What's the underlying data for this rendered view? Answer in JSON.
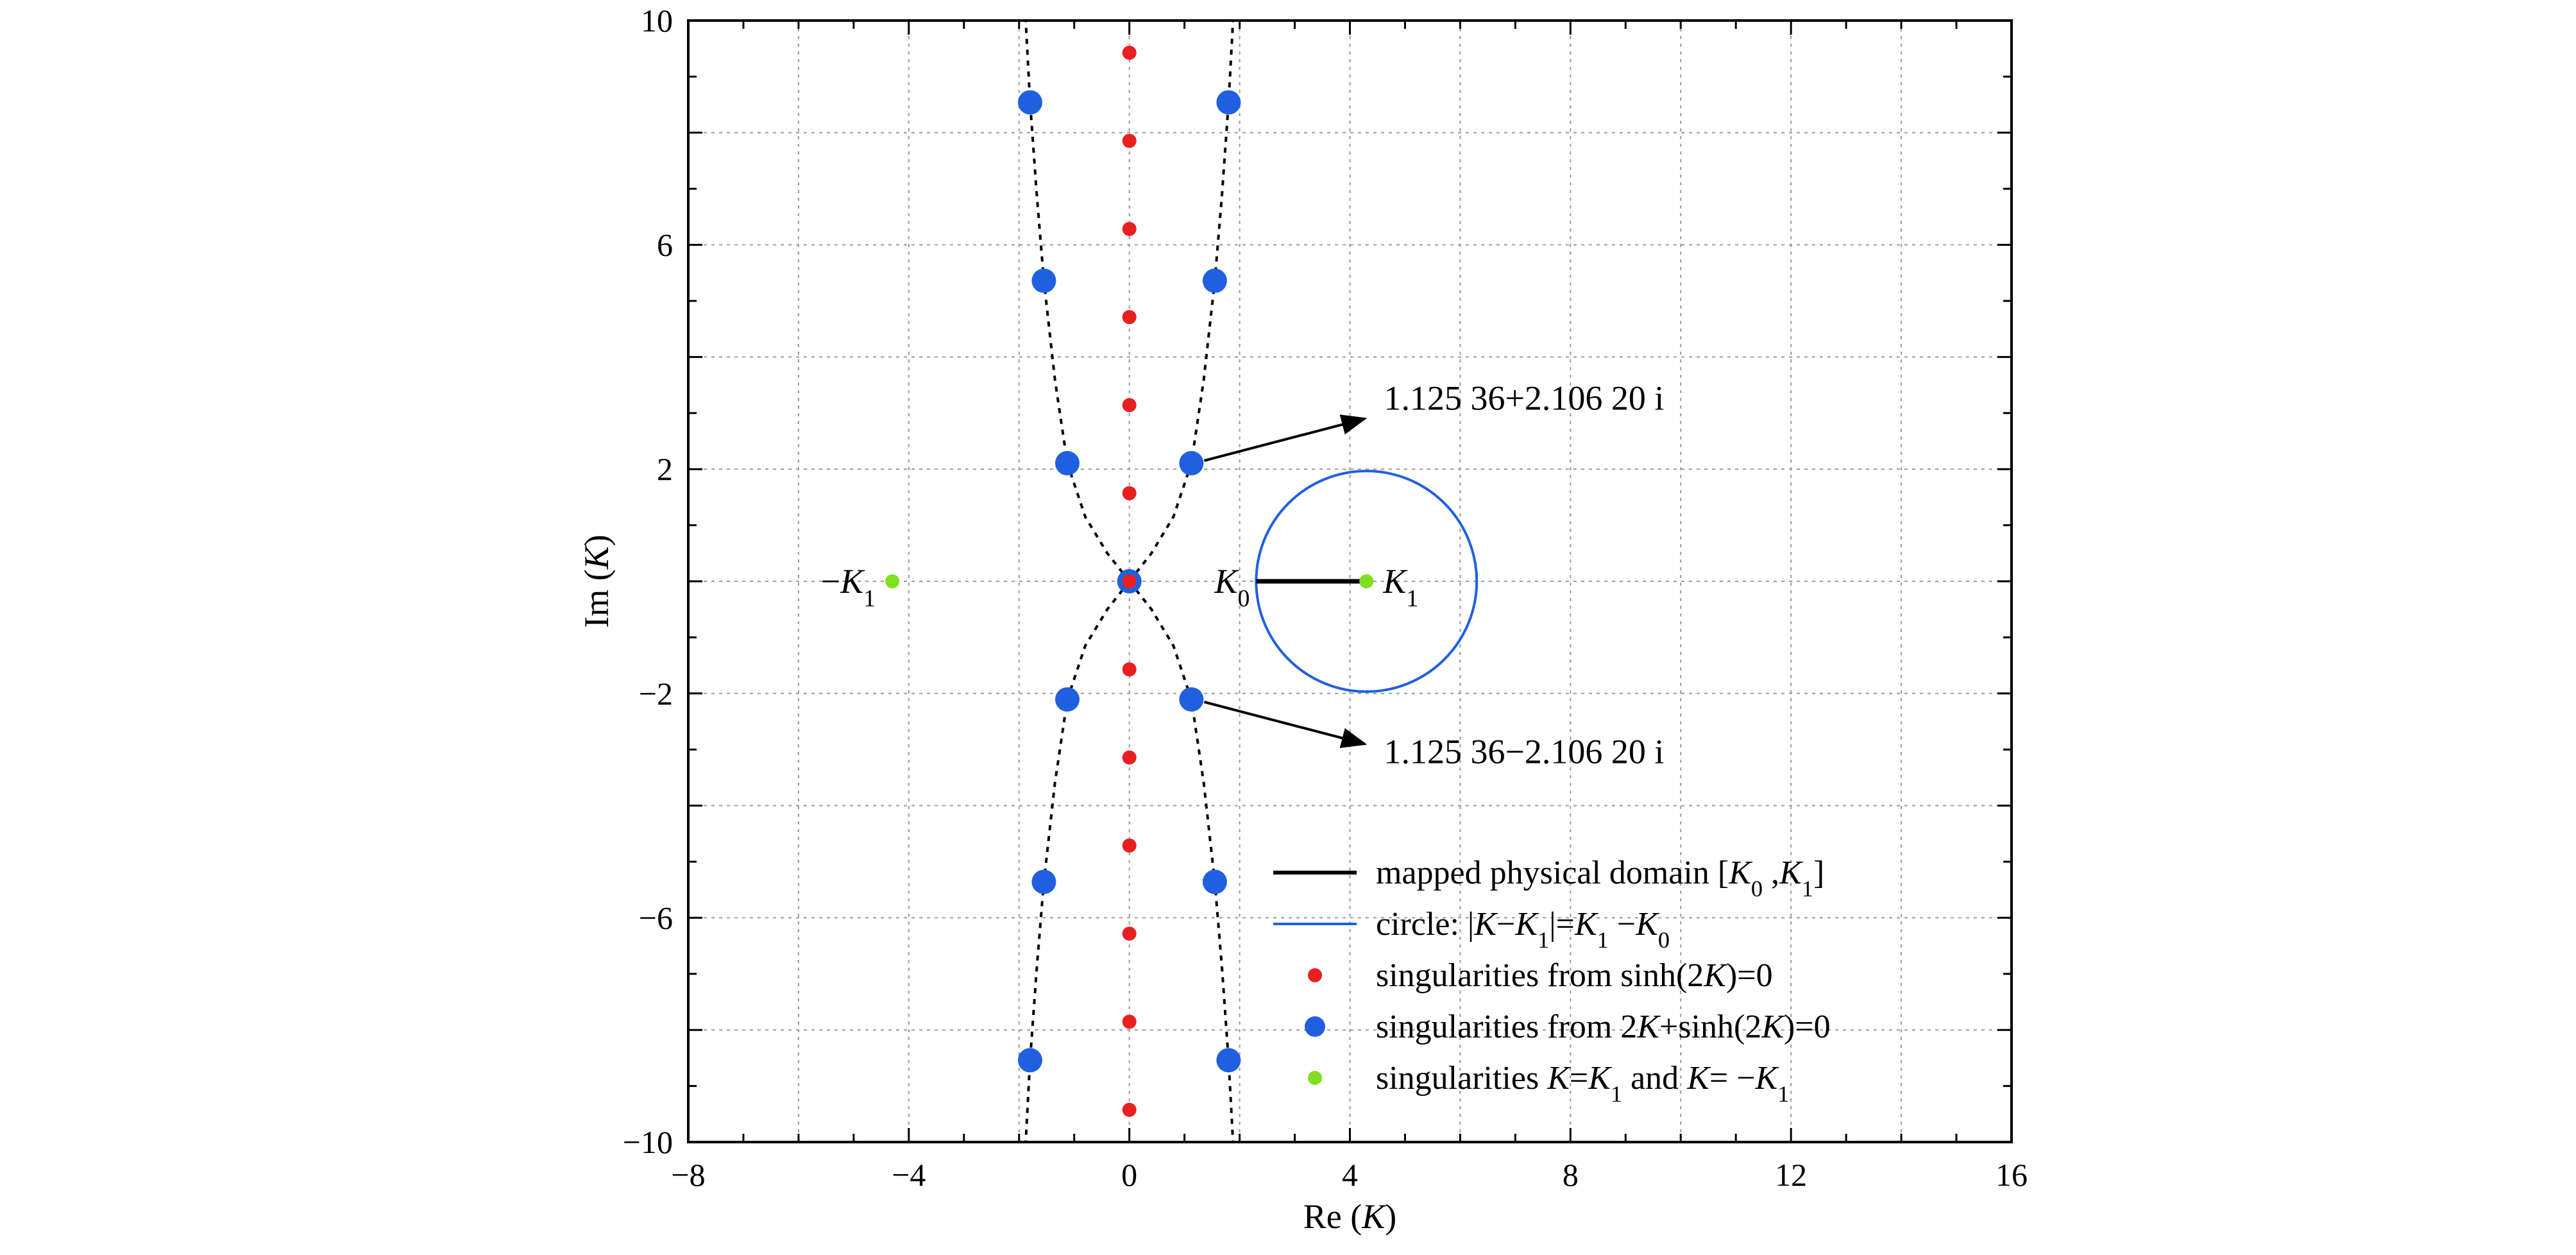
{
  "chart_data": {
    "type": "scatter",
    "xlabel": {
      "prefix": "Re (",
      "var": "K",
      "suffix": ")"
    },
    "ylabel": {
      "prefix": "Im (",
      "var": "K",
      "suffix": ")"
    },
    "xlim": [
      -8,
      16
    ],
    "ylim": [
      -10,
      10
    ],
    "x_ticks": [
      -8,
      -4,
      0,
      4,
      8,
      12,
      16
    ],
    "y_ticks": [
      -10,
      -6,
      -2,
      2,
      6,
      10
    ],
    "x_tick_labels": [
      "−8",
      "−4",
      "0",
      "4",
      "8",
      "12",
      "16"
    ],
    "y_tick_labels": [
      "−10",
      "−6",
      "−2",
      "2",
      "6",
      "10"
    ],
    "grid": true,
    "grid_step_x": 2,
    "grid_step_y": 2,
    "legend_position": "bottom-right",
    "colors": {
      "red": "#e82020",
      "blue": "#2060e0",
      "green": "#80e020",
      "black": "#000000"
    },
    "series": [
      {
        "name": "singularities from sinh(2K)=0",
        "marker": "small-dot",
        "color": "#e82020",
        "x": [
          0,
          0,
          0,
          0,
          0,
          0,
          0,
          0,
          0,
          0,
          0,
          0,
          0
        ],
        "y": [
          9.425,
          7.854,
          6.283,
          4.712,
          3.142,
          1.571,
          0,
          -1.571,
          -3.142,
          -4.712,
          -6.283,
          -7.854,
          -9.425
        ]
      },
      {
        "name": "singularities from 2K+sinh(2K)=0",
        "marker": "large-dot",
        "color": "#2060e0",
        "x": [
          1.8,
          -1.8,
          1.55,
          -1.55,
          1.125,
          -1.125,
          0,
          1.125,
          -1.125,
          1.55,
          -1.55,
          1.8,
          -1.8
        ],
        "y": [
          8.54,
          8.54,
          5.36,
          5.36,
          2.106,
          2.106,
          0,
          -2.106,
          -2.106,
          -5.36,
          -5.36,
          -8.54,
          -8.54
        ]
      },
      {
        "name": "singularities K=K1 and K=−K1",
        "marker": "small-dot",
        "color": "#80e020",
        "x": [
          4.3,
          -4.3
        ],
        "y": [
          0,
          0
        ]
      }
    ],
    "dashed_curves": [
      [
        [
          0,
          0
        ],
        [
          0.4,
          0.5
        ],
        [
          0.8,
          1.15
        ],
        [
          1.125,
          2.106
        ],
        [
          1.35,
          3.6
        ],
        [
          1.55,
          5.36
        ],
        [
          1.68,
          6.9
        ],
        [
          1.8,
          8.54
        ],
        [
          1.88,
          10.0
        ]
      ],
      [
        [
          0,
          0
        ],
        [
          -0.4,
          0.5
        ],
        [
          -0.8,
          1.15
        ],
        [
          -1.125,
          2.106
        ],
        [
          -1.35,
          3.6
        ],
        [
          -1.55,
          5.36
        ],
        [
          -1.68,
          6.9
        ],
        [
          -1.8,
          8.54
        ],
        [
          -1.88,
          10.0
        ]
      ],
      [
        [
          0,
          0
        ],
        [
          0.4,
          -0.5
        ],
        [
          0.8,
          -1.15
        ],
        [
          1.125,
          -2.106
        ],
        [
          1.35,
          -3.6
        ],
        [
          1.55,
          -5.36
        ],
        [
          1.68,
          -6.9
        ],
        [
          1.8,
          -8.54
        ],
        [
          1.88,
          -10.0
        ]
      ],
      [
        [
          0,
          0
        ],
        [
          -0.4,
          -0.5
        ],
        [
          -0.8,
          -1.15
        ],
        [
          -1.125,
          -2.106
        ],
        [
          -1.35,
          -3.6
        ],
        [
          -1.55,
          -5.36
        ],
        [
          -1.68,
          -6.9
        ],
        [
          -1.8,
          -8.54
        ],
        [
          -1.88,
          -10.0
        ]
      ]
    ],
    "segment": {
      "name": "mapped physical domain [K0 , K1]",
      "from": [
        2.3,
        0
      ],
      "to": [
        4.3,
        0
      ],
      "color": "#000000"
    },
    "circle": {
      "name": "circle: |K−K1|=K1 −K0",
      "center": [
        4.3,
        0
      ],
      "radius": 2.0,
      "color": "#2060e0"
    },
    "annotations": [
      {
        "id": "upper-root",
        "text": "1.125 36+2.106 20 i",
        "from": [
          1.125,
          2.106
        ],
        "to": [
          4.5,
          2.9
        ]
      },
      {
        "id": "lower-root",
        "text": "1.125 36−2.106 20 i",
        "from": [
          1.125,
          -2.106
        ],
        "to": [
          4.5,
          -2.9
        ]
      }
    ],
    "point_labels": [
      {
        "id": "k0",
        "sign": "",
        "sym": "K",
        "sub": "0",
        "at": [
          2.3,
          0
        ]
      },
      {
        "id": "k1",
        "sign": "",
        "sym": "K",
        "sub": "1",
        "at": [
          4.3,
          0
        ]
      },
      {
        "id": "neg-k1",
        "sign": "−",
        "sym": "K",
        "sub": "1",
        "at": [
          -4.3,
          0
        ]
      }
    ],
    "legend": [
      {
        "id": "segment",
        "swatch": "line",
        "color": "#000000",
        "parts": [
          {
            "t": "mapped physical domain ["
          },
          {
            "t": "K",
            "i": true
          },
          {
            "t": "0",
            "sub": true
          },
          {
            "t": " ,"
          },
          {
            "t": "K",
            "i": true
          },
          {
            "t": "1",
            "sub": true
          },
          {
            "t": "]"
          }
        ]
      },
      {
        "id": "circle",
        "swatch": "line",
        "color": "#2060e0",
        "parts": [
          {
            "t": "circle: |"
          },
          {
            "t": "K",
            "i": true
          },
          {
            "t": "−"
          },
          {
            "t": "K",
            "i": true
          },
          {
            "t": "1",
            "sub": true
          },
          {
            "t": "|="
          },
          {
            "t": "K",
            "i": true
          },
          {
            "t": "1",
            "sub": true
          },
          {
            "t": " −"
          },
          {
            "t": "K",
            "i": true
          },
          {
            "t": "0",
            "sub": true
          }
        ]
      },
      {
        "id": "red",
        "swatch": "small-dot",
        "color": "#e82020",
        "parts": [
          {
            "t": "singularities from sinh(2"
          },
          {
            "t": "K",
            "i": true
          },
          {
            "t": ")=0"
          }
        ]
      },
      {
        "id": "blue",
        "swatch": "large-dot",
        "color": "#2060e0",
        "parts": [
          {
            "t": "singularities from 2"
          },
          {
            "t": "K",
            "i": true
          },
          {
            "t": "+sinh(2"
          },
          {
            "t": "K",
            "i": true
          },
          {
            "t": ")=0"
          }
        ]
      },
      {
        "id": "green",
        "swatch": "small-dot",
        "color": "#80e020",
        "parts": [
          {
            "t": "singularities "
          },
          {
            "t": "K",
            "i": true
          },
          {
            "t": "="
          },
          {
            "t": "K",
            "i": true
          },
          {
            "t": "1",
            "sub": true
          },
          {
            "t": " and "
          },
          {
            "t": "K",
            "i": true
          },
          {
            "t": "= −"
          },
          {
            "t": "K",
            "i": true
          },
          {
            "t": "1",
            "sub": true
          }
        ]
      }
    ]
  }
}
